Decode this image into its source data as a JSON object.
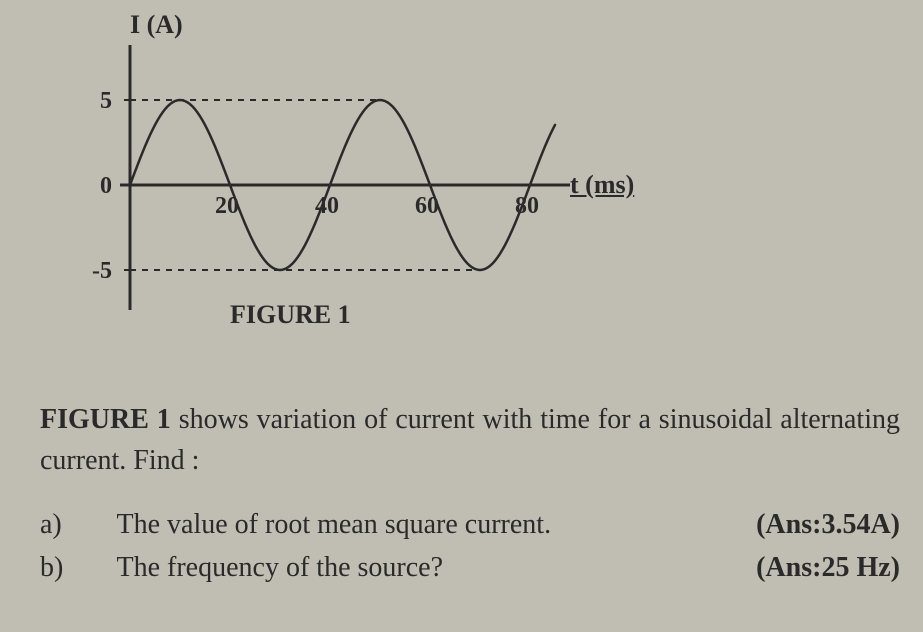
{
  "chart": {
    "type": "line",
    "y_label": "I (A)",
    "x_label": "t (ms)",
    "x_label_underlined": true,
    "y_ticks": [
      {
        "value": 5,
        "label": "5"
      },
      {
        "value": 0,
        "label": "0"
      },
      {
        "value": -5,
        "label": "-5"
      }
    ],
    "x_ticks": [
      {
        "value": 20,
        "label": "20"
      },
      {
        "value": 40,
        "label": "40"
      },
      {
        "value": 60,
        "label": "60"
      },
      {
        "value": 80,
        "label": "80"
      }
    ],
    "ylim": [
      -5,
      5
    ],
    "xlim": [
      0,
      90
    ],
    "amplitude": 5,
    "period_ms": 40,
    "phase_offset_ms": 0,
    "curve_stroke": "#2a2a2a",
    "curve_width": 2.5,
    "axis_stroke": "#2a2a2a",
    "axis_width": 3,
    "dash_stroke": "#2a2a2a",
    "dash_pattern": "6,6",
    "background_color": "#c0bdb3",
    "tick_fontsize": 24,
    "label_fontsize": 26,
    "caption": "FIGURE 1",
    "caption_fontsize": 26
  },
  "prompt": {
    "fig_ref": "FIGURE 1",
    "text_after_ref": " shows variation of current with time for a sinusoidal alternating current. Find :"
  },
  "questions": [
    {
      "label": "a)",
      "text": "The value of root mean square current.",
      "answer": "(Ans:3.54A)"
    },
    {
      "label": "b)",
      "text": "The frequency of the source?",
      "answer": "(Ans:25 Hz)"
    }
  ]
}
